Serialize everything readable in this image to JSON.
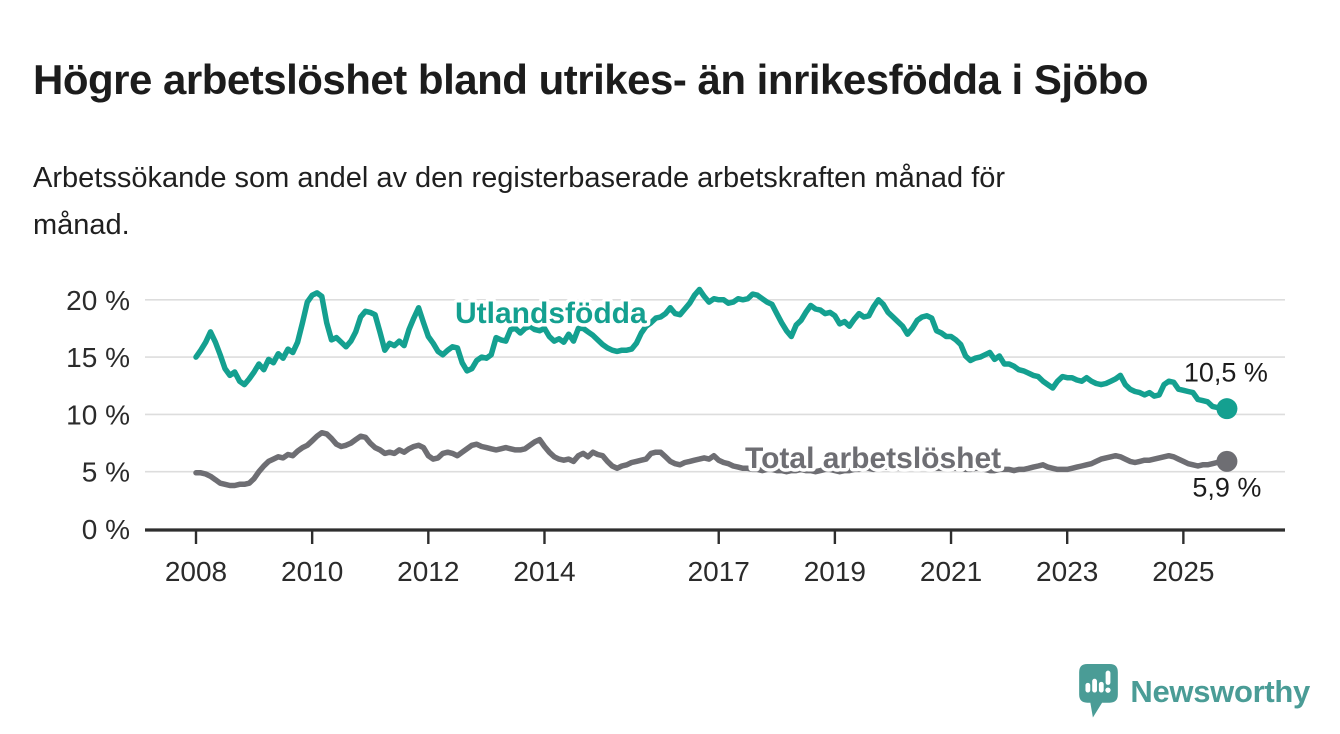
{
  "header": {
    "title": "Högre arbetslöshet bland utrikes- än inrikesfödda i Sjöbo",
    "subtitle_lines": [
      "Arbetssökande som andel av den registerbaserade arbetskraften månad för",
      "månad."
    ]
  },
  "chart_data": {
    "type": "line",
    "unit": "%",
    "frequency": "monthly",
    "start_month": "2008-01",
    "end_month": "2025-10",
    "grid": true,
    "legend": "inline-labels",
    "ylim": [
      0,
      21.5
    ],
    "x_tick_years": [
      2008,
      2010,
      2012,
      2014,
      2017,
      2019,
      2021,
      2023,
      2025
    ],
    "y_ticks": [
      {
        "value": 0,
        "label": "0 %"
      },
      {
        "value": 5,
        "label": "5 %"
      },
      {
        "value": 10,
        "label": "10 %"
      },
      {
        "value": 15,
        "label": "15 %"
      },
      {
        "value": 20,
        "label": "20 %"
      }
    ],
    "series": [
      {
        "name": "Utlandsfödda",
        "color": "#14a090",
        "end_value": 10.5,
        "end_label": "10,5 %",
        "values": [
          15.0,
          15.6,
          16.3,
          17.2,
          16.3,
          15.2,
          14.0,
          13.4,
          13.7,
          12.9,
          12.6,
          13.1,
          13.7,
          14.4,
          13.9,
          14.8,
          14.5,
          15.3,
          14.9,
          15.7,
          15.4,
          16.3,
          18.0,
          19.8,
          20.4,
          20.6,
          20.3,
          18.0,
          16.5,
          16.7,
          16.3,
          15.9,
          16.4,
          17.2,
          18.5,
          19.0,
          18.9,
          18.7,
          17.2,
          15.6,
          16.2,
          16.0,
          16.4,
          16.0,
          17.4,
          18.4,
          19.3,
          18.0,
          16.8,
          16.2,
          15.5,
          15.2,
          15.6,
          15.9,
          15.8,
          14.5,
          13.8,
          14.0,
          14.7,
          15.0,
          14.9,
          15.2,
          16.7,
          16.5,
          16.4,
          17.4,
          17.5,
          17.1,
          17.5,
          17.7,
          17.4,
          17.3,
          17.5,
          16.8,
          16.4,
          16.6,
          16.3,
          17.0,
          16.4,
          17.5,
          17.5,
          17.2,
          16.9,
          16.5,
          16.1,
          15.8,
          15.6,
          15.5,
          15.6,
          15.6,
          15.7,
          16.2,
          17.1,
          17.7,
          18.0,
          18.4,
          18.5,
          18.8,
          19.3,
          18.8,
          18.7,
          19.2,
          19.7,
          20.4,
          20.9,
          20.3,
          19.8,
          20.1,
          20.0,
          20.0,
          19.7,
          19.8,
          20.1,
          20.0,
          20.1,
          20.5,
          20.4,
          20.1,
          19.8,
          19.6,
          18.8,
          18.0,
          17.3,
          16.8,
          17.8,
          18.2,
          18.9,
          19.5,
          19.2,
          19.1,
          18.8,
          18.9,
          18.6,
          17.9,
          18.1,
          17.7,
          18.3,
          18.8,
          18.5,
          18.6,
          19.4,
          20.0,
          19.6,
          18.9,
          18.5,
          18.1,
          17.7,
          17.0,
          17.5,
          18.2,
          18.5,
          18.6,
          18.4,
          17.3,
          17.1,
          16.8,
          16.8,
          16.5,
          16.1,
          15.1,
          14.7,
          14.9,
          15.0,
          15.2,
          15.4,
          14.8,
          15.1,
          14.4,
          14.4,
          14.2,
          13.9,
          13.8,
          13.6,
          13.4,
          13.3,
          12.9,
          12.6,
          12.3,
          12.9,
          13.3,
          13.2,
          13.2,
          13.0,
          12.9,
          13.2,
          12.9,
          12.7,
          12.6,
          12.7,
          12.9,
          13.1,
          13.4,
          12.6,
          12.2,
          12.0,
          11.9,
          11.7,
          11.9,
          11.6,
          11.7,
          12.6,
          12.9,
          12.8,
          12.2,
          12.1,
          12.0,
          11.9,
          11.3,
          11.2,
          11.1,
          10.7,
          10.6,
          10.6,
          10.5
        ]
      },
      {
        "name": "Total arbetslöshet",
        "color": "#6e6e73",
        "end_value": 5.9,
        "end_label": "5,9 %",
        "values": [
          4.9,
          4.9,
          4.8,
          4.6,
          4.3,
          4.0,
          3.9,
          3.8,
          3.8,
          3.9,
          3.9,
          4.0,
          4.4,
          5.0,
          5.5,
          5.9,
          6.1,
          6.3,
          6.2,
          6.5,
          6.4,
          6.8,
          7.1,
          7.3,
          7.7,
          8.1,
          8.4,
          8.3,
          7.9,
          7.4,
          7.2,
          7.3,
          7.5,
          7.8,
          8.1,
          8.0,
          7.5,
          7.1,
          6.9,
          6.6,
          6.7,
          6.6,
          6.9,
          6.7,
          7.0,
          7.2,
          7.3,
          7.1,
          6.4,
          6.1,
          6.2,
          6.6,
          6.7,
          6.6,
          6.4,
          6.7,
          7.0,
          7.3,
          7.4,
          7.2,
          7.1,
          7.0,
          6.9,
          7.0,
          7.1,
          7.0,
          6.9,
          6.9,
          7.0,
          7.3,
          7.6,
          7.8,
          7.2,
          6.7,
          6.3,
          6.1,
          6.0,
          6.1,
          5.9,
          6.4,
          6.6,
          6.3,
          6.7,
          6.5,
          6.4,
          5.9,
          5.5,
          5.3,
          5.5,
          5.6,
          5.8,
          5.9,
          6.0,
          6.1,
          6.6,
          6.7,
          6.7,
          6.3,
          5.9,
          5.7,
          5.6,
          5.8,
          5.9,
          6.0,
          6.1,
          6.2,
          6.1,
          6.4,
          6.0,
          5.8,
          5.7,
          5.5,
          5.4,
          5.3,
          5.3,
          5.2,
          5.2,
          5.1,
          5.2,
          5.2,
          5.1,
          5.1,
          5.0,
          5.1,
          5.1,
          5.2,
          5.1,
          5.1,
          5.0,
          5.1,
          5.2,
          5.2,
          5.1,
          5.0,
          5.1,
          5.1,
          5.2,
          5.2,
          5.3,
          5.3,
          5.2,
          5.3,
          5.4,
          5.4,
          5.3,
          5.3,
          5.4,
          5.6,
          5.7,
          5.7,
          5.6,
          5.5,
          5.4,
          5.3,
          5.3,
          5.4,
          5.4,
          5.3,
          5.3,
          5.2,
          5.2,
          5.3,
          5.3,
          5.2,
          5.1,
          5.1,
          5.2,
          5.2,
          5.2,
          5.1,
          5.2,
          5.2,
          5.3,
          5.4,
          5.5,
          5.6,
          5.4,
          5.3,
          5.2,
          5.2,
          5.2,
          5.3,
          5.4,
          5.5,
          5.6,
          5.7,
          5.9,
          6.1,
          6.2,
          6.3,
          6.4,
          6.3,
          6.1,
          5.9,
          5.8,
          5.9,
          6.0,
          6.0,
          6.1,
          6.2,
          6.3,
          6.4,
          6.3,
          6.1,
          5.9,
          5.7,
          5.6,
          5.5,
          5.6,
          5.6,
          5.7,
          5.8,
          5.8,
          5.9
        ]
      }
    ],
    "colors": {
      "grid": "#dddddd",
      "axis": "#2e2e2e",
      "tick_text": "#2b2b2b",
      "end_label_text": "#1d1d1d"
    }
  },
  "footer": {
    "brand": "Newsworthy",
    "brand_color": "#4a9c96"
  }
}
